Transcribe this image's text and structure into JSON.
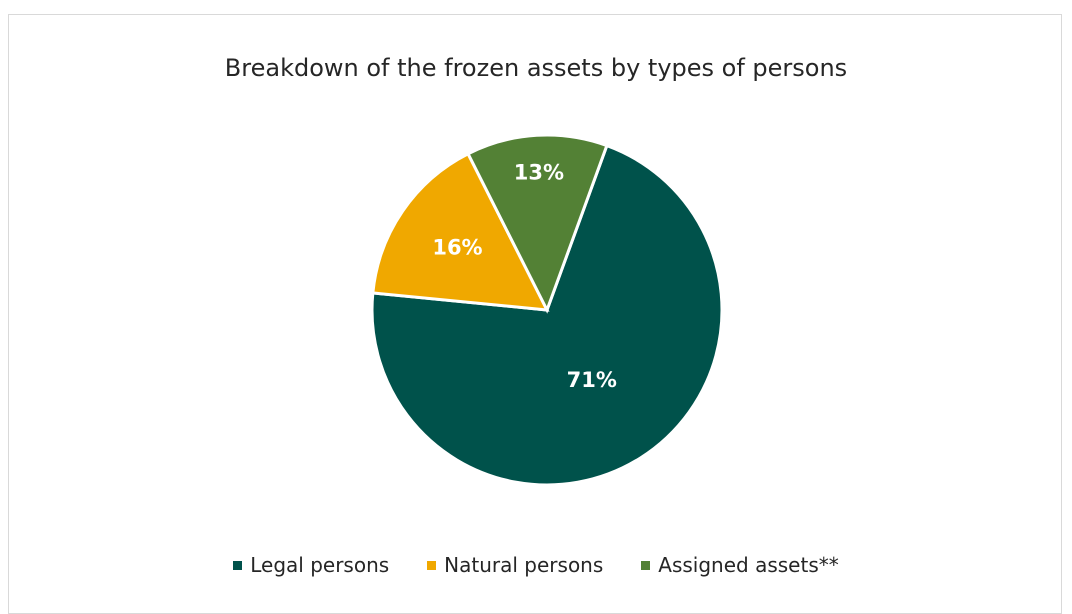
{
  "chart_data": {
    "type": "pie",
    "title": "Breakdown of the frozen assets by types of persons",
    "slices": [
      {
        "name": "Legal persons",
        "value": 71,
        "label": "71%",
        "color": "#00524b"
      },
      {
        "name": "Natural persons",
        "value": 16,
        "label": "16%",
        "color": "#f0a800"
      },
      {
        "name": "Assigned assets**",
        "value": 13,
        "label": "13%",
        "color": "#538135"
      }
    ],
    "legend_position": "bottom"
  }
}
